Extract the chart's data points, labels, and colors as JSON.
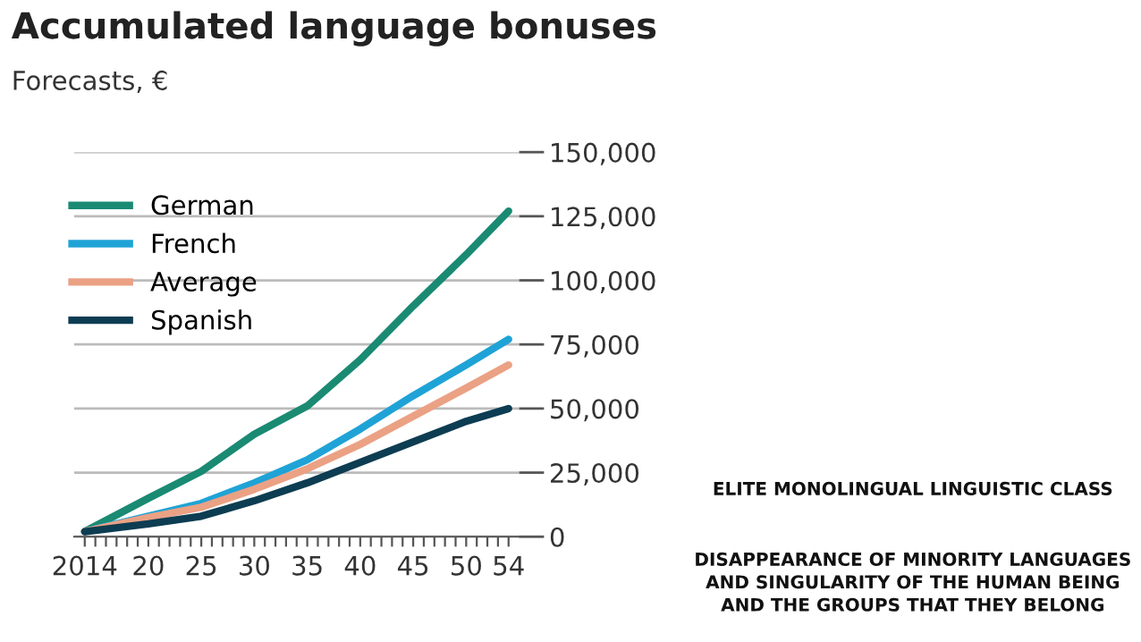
{
  "chart_data": {
    "type": "line",
    "title": "Accumulated language bonuses",
    "subtitle": "Forecasts, €",
    "x": [
      2014,
      2020,
      2025,
      2030,
      2035,
      2040,
      2045,
      2050,
      2054
    ],
    "series": [
      {
        "name": "German",
        "color": "#1a8a73",
        "values": [
          2000,
          15000,
          25500,
          40000,
          51000,
          69000,
          90000,
          110000,
          127000
        ]
      },
      {
        "name": "French",
        "color": "#1fa3d6",
        "values": [
          2000,
          8000,
          13000,
          21000,
          30000,
          42000,
          55000,
          67000,
          77000
        ]
      },
      {
        "name": "Average",
        "color": "#eba184",
        "values": [
          2000,
          7500,
          11500,
          18500,
          26500,
          36000,
          47000,
          58000,
          67000
        ]
      },
      {
        "name": "Spanish",
        "color": "#0d3d52",
        "values": [
          2000,
          5000,
          8000,
          14000,
          21000,
          29000,
          37000,
          45000,
          50000
        ]
      }
    ],
    "xlim": [
      2013,
      2055
    ],
    "xticks": [
      {
        "value": 2014,
        "label": "2014"
      },
      {
        "value": 2015,
        "label": null
      },
      {
        "value": 2016,
        "label": null
      },
      {
        "value": 2017,
        "label": null
      },
      {
        "value": 2018,
        "label": null
      },
      {
        "value": 2019,
        "label": null
      },
      {
        "value": 2020,
        "label": "20"
      },
      {
        "value": 2021,
        "label": null
      },
      {
        "value": 2022,
        "label": null
      },
      {
        "value": 2023,
        "label": null
      },
      {
        "value": 2024,
        "label": null
      },
      {
        "value": 2025,
        "label": "25"
      },
      {
        "value": 2026,
        "label": null
      },
      {
        "value": 2027,
        "label": null
      },
      {
        "value": 2028,
        "label": null
      },
      {
        "value": 2029,
        "label": null
      },
      {
        "value": 2030,
        "label": "30"
      },
      {
        "value": 2031,
        "label": null
      },
      {
        "value": 2032,
        "label": null
      },
      {
        "value": 2033,
        "label": null
      },
      {
        "value": 2034,
        "label": null
      },
      {
        "value": 2035,
        "label": "35"
      },
      {
        "value": 2036,
        "label": null
      },
      {
        "value": 2037,
        "label": null
      },
      {
        "value": 2038,
        "label": null
      },
      {
        "value": 2039,
        "label": null
      },
      {
        "value": 2040,
        "label": "40"
      },
      {
        "value": 2041,
        "label": null
      },
      {
        "value": 2042,
        "label": null
      },
      {
        "value": 2043,
        "label": null
      },
      {
        "value": 2044,
        "label": null
      },
      {
        "value": 2045,
        "label": "45"
      },
      {
        "value": 2046,
        "label": null
      },
      {
        "value": 2047,
        "label": null
      },
      {
        "value": 2048,
        "label": null
      },
      {
        "value": 2049,
        "label": null
      },
      {
        "value": 2050,
        "label": "50"
      },
      {
        "value": 2051,
        "label": null
      },
      {
        "value": 2052,
        "label": null
      },
      {
        "value": 2053,
        "label": null
      },
      {
        "value": 2054,
        "label": "54"
      }
    ],
    "ylim": [
      0,
      150000
    ],
    "yticks": [
      0,
      {
        "value": 25000,
        "label": "25,000"
      },
      {
        "value": 50000,
        "label": "50,000"
      },
      {
        "value": 75000,
        "label": "75,000"
      },
      {
        "value": 100000,
        "label": "100,000"
      },
      {
        "value": 125000,
        "label": "125,000"
      },
      {
        "value": 150000,
        "label": "150,000"
      }
    ],
    "grid": "y",
    "legend": "top left",
    "marker": "none",
    "line_style": "solid",
    "annotations": [
      "ELITE MONOLINGUAL LINGUISTIC CLASS",
      "DISAPPEARANCE OF MINORITY LANGUAGES AND SINGULARITY OF THE HUMAN BEING AND THE GROUPS THAT THEY BELONG"
    ]
  }
}
